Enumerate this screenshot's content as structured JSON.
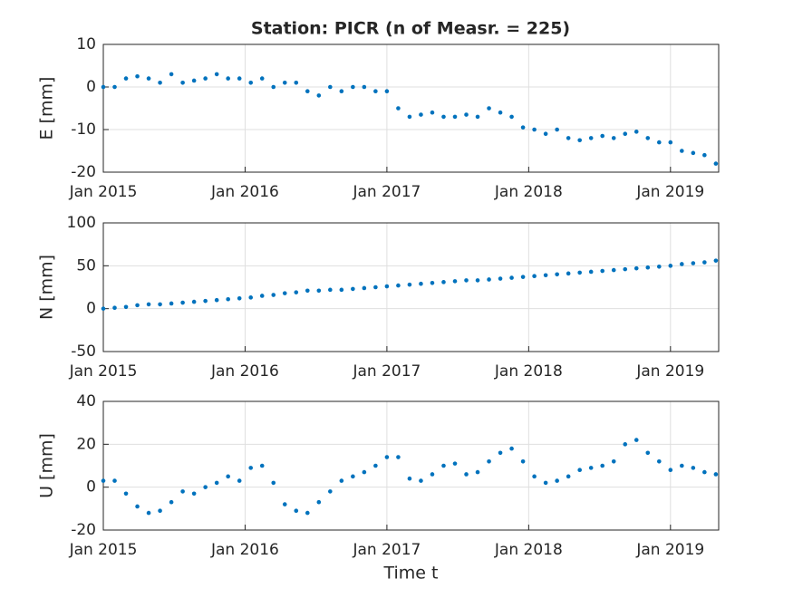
{
  "chart_data": [
    {
      "type": "scatter",
      "title": "Station: PICR (n of Measr. = 225)",
      "ylabel": "E [mm]",
      "color": "#0072bd",
      "grid": true,
      "xlim": [
        2015,
        2019.34
      ],
      "ylim": [
        -20,
        10
      ],
      "yticks": [
        -20,
        -10,
        0,
        10
      ],
      "xticks": [
        {
          "value": 2015,
          "label": "Jan 2015"
        },
        {
          "value": 2016,
          "label": "Jan 2016"
        },
        {
          "value": 2017,
          "label": "Jan 2017"
        },
        {
          "value": 2018,
          "label": "Jan 2018"
        },
        {
          "value": 2019,
          "label": "Jan 2019"
        }
      ],
      "x": [
        2015.0,
        2015.08,
        2015.16,
        2015.24,
        2015.32,
        2015.4,
        2015.48,
        2015.56,
        2015.64,
        2015.72,
        2015.8,
        2015.88,
        2015.96,
        2016.04,
        2016.12,
        2016.2,
        2016.28,
        2016.36,
        2016.44,
        2016.52,
        2016.6,
        2016.68,
        2016.76,
        2016.84,
        2016.92,
        2017.0,
        2017.08,
        2017.16,
        2017.24,
        2017.32,
        2017.4,
        2017.48,
        2017.56,
        2017.64,
        2017.72,
        2017.8,
        2017.88,
        2017.96,
        2018.04,
        2018.12,
        2018.2,
        2018.28,
        2018.36,
        2018.44,
        2018.52,
        2018.6,
        2018.68,
        2018.76,
        2018.84,
        2018.92,
        2019.0,
        2019.08,
        2019.16,
        2019.24,
        2019.32
      ],
      "values": [
        0,
        0,
        2,
        2.5,
        2,
        1,
        3,
        1,
        1.5,
        2,
        3,
        2,
        2,
        1,
        2,
        0,
        1,
        1,
        -1,
        -2,
        0,
        -1,
        0,
        0,
        -1,
        -1,
        -5,
        -7,
        -6.5,
        -6,
        -7,
        -7,
        -6.5,
        -7,
        -5,
        -6,
        -7,
        -9.5,
        -10,
        -11,
        -10,
        -12,
        -12.5,
        -12,
        -11.5,
        -12,
        -11,
        -10.5,
        -12,
        -13,
        -13,
        -15,
        -15.5,
        -16,
        -18
      ]
    },
    {
      "type": "scatter",
      "ylabel": "N [mm]",
      "color": "#0072bd",
      "grid": true,
      "xlim": [
        2015,
        2019.34
      ],
      "ylim": [
        -50,
        100
      ],
      "yticks": [
        -50,
        0,
        50,
        100
      ],
      "xticks": [
        {
          "value": 2015,
          "label": "Jan 2015"
        },
        {
          "value": 2016,
          "label": "Jan 2016"
        },
        {
          "value": 2017,
          "label": "Jan 2017"
        },
        {
          "value": 2018,
          "label": "Jan 2018"
        },
        {
          "value": 2019,
          "label": "Jan 2019"
        }
      ],
      "x": [
        2015.0,
        2015.08,
        2015.16,
        2015.24,
        2015.32,
        2015.4,
        2015.48,
        2015.56,
        2015.64,
        2015.72,
        2015.8,
        2015.88,
        2015.96,
        2016.04,
        2016.12,
        2016.2,
        2016.28,
        2016.36,
        2016.44,
        2016.52,
        2016.6,
        2016.68,
        2016.76,
        2016.84,
        2016.92,
        2017.0,
        2017.08,
        2017.16,
        2017.24,
        2017.32,
        2017.4,
        2017.48,
        2017.56,
        2017.64,
        2017.72,
        2017.8,
        2017.88,
        2017.96,
        2018.04,
        2018.12,
        2018.2,
        2018.28,
        2018.36,
        2018.44,
        2018.52,
        2018.6,
        2018.68,
        2018.76,
        2018.84,
        2018.92,
        2019.0,
        2019.08,
        2019.16,
        2019.24,
        2019.32
      ],
      "values": [
        0,
        1,
        2,
        4,
        5,
        5,
        6,
        7,
        8,
        9,
        10,
        11,
        12,
        13,
        15,
        16,
        18,
        19,
        21,
        21,
        22,
        22,
        23,
        24,
        25,
        26,
        27,
        28,
        29,
        30,
        31,
        32,
        33,
        33,
        34,
        35,
        36,
        37,
        38,
        39,
        40,
        41,
        42,
        43,
        44,
        45,
        46,
        47,
        48,
        49,
        50,
        52,
        53,
        54,
        56
      ]
    },
    {
      "type": "scatter",
      "ylabel": "U [mm]",
      "xlabel": "Time t",
      "color": "#0072bd",
      "grid": true,
      "xlim": [
        2015,
        2019.34
      ],
      "ylim": [
        -20,
        40
      ],
      "yticks": [
        -20,
        0,
        20,
        40
      ],
      "xticks": [
        {
          "value": 2015,
          "label": "Jan 2015"
        },
        {
          "value": 2016,
          "label": "Jan 2016"
        },
        {
          "value": 2017,
          "label": "Jan 2017"
        },
        {
          "value": 2018,
          "label": "Jan 2018"
        },
        {
          "value": 2019,
          "label": "Jan 2019"
        }
      ],
      "x": [
        2015.0,
        2015.08,
        2015.16,
        2015.24,
        2015.32,
        2015.4,
        2015.48,
        2015.56,
        2015.64,
        2015.72,
        2015.8,
        2015.88,
        2015.96,
        2016.04,
        2016.12,
        2016.2,
        2016.28,
        2016.36,
        2016.44,
        2016.52,
        2016.6,
        2016.68,
        2016.76,
        2016.84,
        2016.92,
        2017.0,
        2017.08,
        2017.16,
        2017.24,
        2017.32,
        2017.4,
        2017.48,
        2017.56,
        2017.64,
        2017.72,
        2017.8,
        2017.88,
        2017.96,
        2018.04,
        2018.12,
        2018.2,
        2018.28,
        2018.36,
        2018.44,
        2018.52,
        2018.6,
        2018.68,
        2018.76,
        2018.84,
        2018.92,
        2019.0,
        2019.08,
        2019.16,
        2019.24,
        2019.32
      ],
      "values": [
        3,
        3,
        -3,
        -9,
        -12,
        -11,
        -7,
        -2,
        -3,
        0,
        2,
        5,
        3,
        9,
        10,
        2,
        -8,
        -11,
        -12,
        -7,
        -2,
        3,
        5,
        7,
        10,
        14,
        14,
        4,
        3,
        6,
        10,
        11,
        6,
        7,
        12,
        16,
        18,
        12,
        5,
        2,
        3,
        5,
        8,
        9,
        10,
        12,
        20,
        22,
        16,
        12,
        8,
        10,
        9,
        7,
        6
      ]
    }
  ]
}
